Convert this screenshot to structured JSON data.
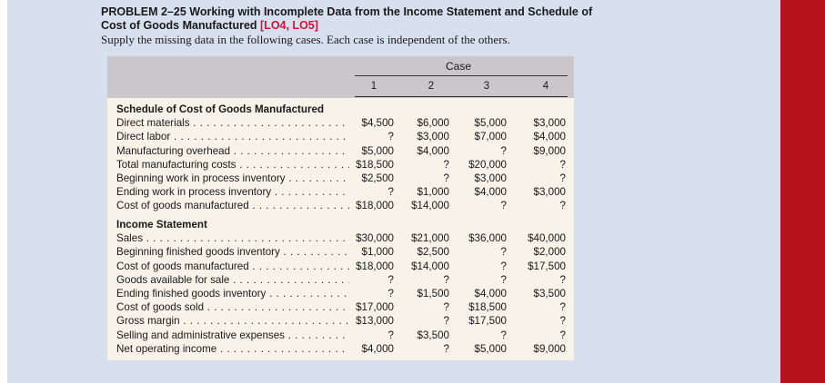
{
  "problem": {
    "title_main": "PROBLEM 2–25 Working with Incomplete Data from the Income Statement and Schedule of Cost of Goods Manufactured",
    "title_codes": "[LO4, LO5]",
    "intro": "Supply the missing data in the following cases. Each case is independent of the others."
  },
  "table": {
    "case_header": "Case",
    "columns": [
      "1",
      "2",
      "3",
      "4"
    ],
    "sections": [
      {
        "heading": "Schedule of Cost of Goods Manufactured",
        "rows": [
          {
            "label": "Direct materials",
            "values": [
              "$4,500",
              "$6,000",
              "$5,000",
              "$3,000"
            ]
          },
          {
            "label": "Direct labor",
            "values": [
              "?",
              "$3,000",
              "$7,000",
              "$4,000"
            ]
          },
          {
            "label": "Manufacturing overhead",
            "values": [
              "$5,000",
              "$4,000",
              "?",
              "$9,000"
            ]
          },
          {
            "label": "Total manufacturing costs",
            "values": [
              "$18,500",
              "?",
              "$20,000",
              "?"
            ]
          },
          {
            "label": "Beginning work in process inventory",
            "values": [
              "$2,500",
              "?",
              "$3,000",
              "?"
            ]
          },
          {
            "label": "Ending work in process inventory",
            "values": [
              "?",
              "$1,000",
              "$4,000",
              "$3,000"
            ]
          },
          {
            "label": "Cost of goods manufactured",
            "values": [
              "$18,000",
              "$14,000",
              "?",
              "?"
            ]
          }
        ]
      },
      {
        "heading": "Income Statement",
        "rows": [
          {
            "label": "Sales",
            "values": [
              "$30,000",
              "$21,000",
              "$36,000",
              "$40,000"
            ]
          },
          {
            "label": "Beginning finished goods inventory",
            "values": [
              "$1,000",
              "$2,500",
              "?",
              "$2,000"
            ]
          },
          {
            "label": "Cost of goods manufactured",
            "values": [
              "$18,000",
              "$14,000",
              "?",
              "$17,500"
            ]
          },
          {
            "label": "Goods available for sale",
            "values": [
              "?",
              "?",
              "?",
              "?"
            ]
          },
          {
            "label": "Ending finished goods inventory",
            "values": [
              "?",
              "$1,500",
              "$4,000",
              "$3,500"
            ]
          },
          {
            "label": "Cost of goods sold",
            "values": [
              "$17,000",
              "?",
              "$18,500",
              "?"
            ]
          },
          {
            "label": "Gross margin",
            "values": [
              "$13,000",
              "?",
              "$17,500",
              "?"
            ]
          },
          {
            "label": "Selling and administrative expenses",
            "values": [
              "?",
              "$3,500",
              "?",
              "?"
            ]
          },
          {
            "label": "Net operating income",
            "values": [
              "$4,000",
              "?",
              "$5,000",
              "$9,000"
            ]
          }
        ]
      }
    ]
  },
  "colors": {
    "page_background": "#d6e0ef",
    "table_background": "#f7f3e8",
    "header_background": "#c9c6cc",
    "code_accent": "#d2143a",
    "right_bar": "#b5121b"
  }
}
